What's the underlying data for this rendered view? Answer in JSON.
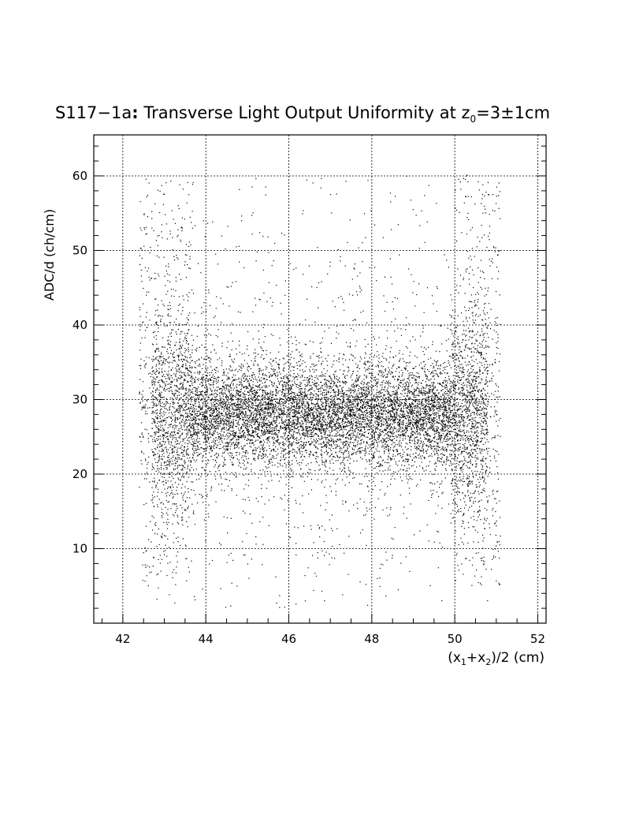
{
  "chart_data": {
    "type": "scatter",
    "title_main": "S117−1a",
    "title_colon": ":",
    "title_rest": " Transverse Light Output Uniformity at z",
    "title_sub": "0",
    "title_tail": "=3±1cm",
    "xlabel_parts": [
      "(x",
      "1",
      "+x",
      "2",
      ")/2 (cm)"
    ],
    "ylabel": "ADC/d (ch/cm)",
    "xlim": [
      41.3,
      52.2
    ],
    "ylim": [
      0,
      65.5
    ],
    "xticks": [
      42,
      44,
      46,
      48,
      50,
      52
    ],
    "xtick_labels": [
      "42",
      "44",
      "46",
      "48",
      "50",
      "52"
    ],
    "yticks": [
      10,
      20,
      30,
      40,
      50,
      60
    ],
    "ytick_labels": [
      "10",
      "20",
      "30",
      "40",
      "50",
      "60"
    ],
    "grid": true,
    "point_color": "#000000",
    "data_x_range": [
      42.4,
      51.1
    ],
    "core_y_center": 28.0,
    "points": [
      [
        42.5,
        29.1
      ],
      [
        42.8,
        35.4
      ],
      [
        43.0,
        27.2
      ],
      [
        43.3,
        31.8
      ],
      [
        43.6,
        26.5
      ],
      [
        43.9,
        28.9
      ],
      [
        44.2,
        27.4
      ],
      [
        44.5,
        30.2
      ],
      [
        44.8,
        25.9
      ],
      [
        45.1,
        28.1
      ],
      [
        45.4,
        27.0
      ],
      [
        45.7,
        29.6
      ],
      [
        46.0,
        26.8
      ],
      [
        46.3,
        28.4
      ],
      [
        46.6,
        27.3
      ],
      [
        46.9,
        29.9
      ],
      [
        47.2,
        26.1
      ],
      [
        47.5,
        28.7
      ],
      [
        47.8,
        27.6
      ],
      [
        48.1,
        30.4
      ],
      [
        48.4,
        26.4
      ],
      [
        48.7,
        29.2
      ],
      [
        49.0,
        27.8
      ],
      [
        49.3,
        30.8
      ],
      [
        49.6,
        26.9
      ],
      [
        49.9,
        28.3
      ],
      [
        50.2,
        27.1
      ],
      [
        50.5,
        29.5
      ],
      [
        50.8,
        25.6
      ],
      [
        51.0,
        28.0
      ],
      [
        42.7,
        55.2
      ],
      [
        43.1,
        47.8
      ],
      [
        43.5,
        18.3
      ],
      [
        42.9,
        9.1
      ],
      [
        43.2,
        6.1
      ],
      [
        44.1,
        42.6
      ],
      [
        45.3,
        52.4
      ],
      [
        46.2,
        36.7
      ],
      [
        47.4,
        19.6
      ],
      [
        48.5,
        43.1
      ],
      [
        49.2,
        55.3
      ],
      [
        50.3,
        60.1
      ],
      [
        50.7,
        13.4
      ],
      [
        50.9,
        46.2
      ],
      [
        44.6,
        2.3
      ],
      [
        47.9,
        2.4
      ],
      [
        46.8,
        13.0
      ],
      [
        45.0,
        37.2
      ],
      [
        48.2,
        21.2
      ],
      [
        49.7,
        10.2
      ],
      [
        43.7,
        14.8
      ],
      [
        42.6,
        57.4
      ],
      [
        51.0,
        37.6
      ],
      [
        50.6,
        51.2
      ]
    ]
  }
}
